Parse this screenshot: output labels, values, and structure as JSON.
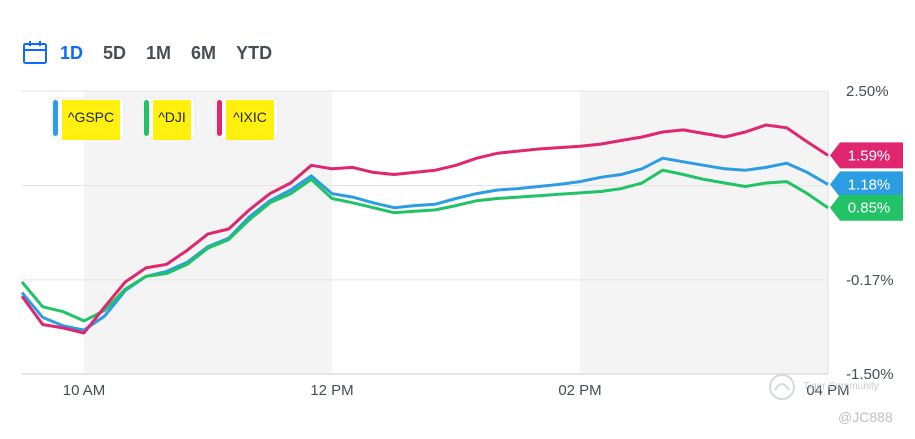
{
  "range_tabs": [
    "1D",
    "5D",
    "1M",
    "6M",
    "YTD"
  ],
  "active_tab": "1D",
  "watermark": {
    "brand": "Tiger Community",
    "handle": "@JC888"
  },
  "colors": {
    "gspc": "#2d9de3",
    "dji": "#21c366",
    "ixic": "#e0266e",
    "highlight": "#ffef00"
  },
  "chart_data": {
    "type": "line",
    "title": "",
    "xlabel": "",
    "ylabel": "",
    "x_ticks": [
      "10 AM",
      "12 PM",
      "02 PM",
      "04 PM"
    ],
    "y_ticks": [
      "2.50%",
      "-0.17%",
      "-1.50%"
    ],
    "ylim": [
      -1.5,
      2.5
    ],
    "xlim": [
      "09:30",
      "16:00"
    ],
    "grid": true,
    "legend_position": "top-left",
    "shaded_periods": [
      [
        "10:00",
        "12:00"
      ],
      [
        "14:00",
        "16:00"
      ]
    ],
    "series": [
      {
        "name": "^GSPC",
        "color": "#2d9de3",
        "end_label": "1.18%",
        "points": [
          [
            "09:30",
            -0.35
          ],
          [
            "09:40",
            -0.7
          ],
          [
            "09:50",
            -0.82
          ],
          [
            "10:00",
            -0.88
          ],
          [
            "10:10",
            -0.68
          ],
          [
            "10:20",
            -0.32
          ],
          [
            "10:30",
            -0.12
          ],
          [
            "10:40",
            -0.05
          ],
          [
            "10:50",
            0.08
          ],
          [
            "11:00",
            0.3
          ],
          [
            "11:10",
            0.42
          ],
          [
            "11:20",
            0.72
          ],
          [
            "11:30",
            0.95
          ],
          [
            "11:40",
            1.1
          ],
          [
            "11:50",
            1.3
          ],
          [
            "12:00",
            1.05
          ],
          [
            "12:10",
            1.0
          ],
          [
            "12:20",
            0.92
          ],
          [
            "12:30",
            0.85
          ],
          [
            "12:40",
            0.88
          ],
          [
            "12:50",
            0.9
          ],
          [
            "13:00",
            0.98
          ],
          [
            "13:10",
            1.05
          ],
          [
            "13:20",
            1.1
          ],
          [
            "13:30",
            1.12
          ],
          [
            "13:40",
            1.15
          ],
          [
            "13:50",
            1.18
          ],
          [
            "14:00",
            1.22
          ],
          [
            "14:10",
            1.28
          ],
          [
            "14:20",
            1.32
          ],
          [
            "14:30",
            1.4
          ],
          [
            "14:40",
            1.55
          ],
          [
            "14:50",
            1.5
          ],
          [
            "15:00",
            1.45
          ],
          [
            "15:10",
            1.4
          ],
          [
            "15:20",
            1.38
          ],
          [
            "15:30",
            1.42
          ],
          [
            "15:40",
            1.48
          ],
          [
            "15:50",
            1.35
          ],
          [
            "16:00",
            1.18
          ]
        ]
      },
      {
        "name": "^DJI",
        "color": "#21c366",
        "end_label": "0.85%",
        "points": [
          [
            "09:30",
            -0.2
          ],
          [
            "09:40",
            -0.55
          ],
          [
            "09:50",
            -0.62
          ],
          [
            "10:00",
            -0.75
          ],
          [
            "10:10",
            -0.6
          ],
          [
            "10:20",
            -0.3
          ],
          [
            "10:30",
            -0.12
          ],
          [
            "10:40",
            -0.08
          ],
          [
            "10:50",
            0.05
          ],
          [
            "11:00",
            0.28
          ],
          [
            "11:10",
            0.4
          ],
          [
            "11:20",
            0.68
          ],
          [
            "11:30",
            0.92
          ],
          [
            "11:40",
            1.05
          ],
          [
            "11:50",
            1.25
          ],
          [
            "12:00",
            0.98
          ],
          [
            "12:10",
            0.92
          ],
          [
            "12:20",
            0.85
          ],
          [
            "12:30",
            0.78
          ],
          [
            "12:40",
            0.8
          ],
          [
            "12:50",
            0.82
          ],
          [
            "13:00",
            0.88
          ],
          [
            "13:10",
            0.95
          ],
          [
            "13:20",
            0.98
          ],
          [
            "13:30",
            1.0
          ],
          [
            "13:40",
            1.02
          ],
          [
            "13:50",
            1.04
          ],
          [
            "14:00",
            1.06
          ],
          [
            "14:10",
            1.08
          ],
          [
            "14:20",
            1.12
          ],
          [
            "14:30",
            1.2
          ],
          [
            "14:40",
            1.38
          ],
          [
            "14:50",
            1.32
          ],
          [
            "15:00",
            1.25
          ],
          [
            "15:10",
            1.2
          ],
          [
            "15:20",
            1.15
          ],
          [
            "15:30",
            1.2
          ],
          [
            "15:40",
            1.22
          ],
          [
            "15:50",
            1.05
          ],
          [
            "16:00",
            0.85
          ]
        ]
      },
      {
        "name": "^IXIC",
        "color": "#e0266e",
        "end_label": "1.59%",
        "points": [
          [
            "09:30",
            -0.4
          ],
          [
            "09:40",
            -0.8
          ],
          [
            "09:50",
            -0.85
          ],
          [
            "10:00",
            -0.92
          ],
          [
            "10:10",
            -0.55
          ],
          [
            "10:20",
            -0.2
          ],
          [
            "10:30",
            0.0
          ],
          [
            "10:40",
            0.05
          ],
          [
            "10:50",
            0.25
          ],
          [
            "11:00",
            0.48
          ],
          [
            "11:10",
            0.55
          ],
          [
            "11:20",
            0.82
          ],
          [
            "11:30",
            1.05
          ],
          [
            "11:40",
            1.2
          ],
          [
            "11:50",
            1.45
          ],
          [
            "12:00",
            1.4
          ],
          [
            "12:10",
            1.42
          ],
          [
            "12:20",
            1.35
          ],
          [
            "12:30",
            1.32
          ],
          [
            "12:40",
            1.35
          ],
          [
            "12:50",
            1.38
          ],
          [
            "13:00",
            1.45
          ],
          [
            "13:10",
            1.55
          ],
          [
            "13:20",
            1.62
          ],
          [
            "13:30",
            1.65
          ],
          [
            "13:40",
            1.68
          ],
          [
            "13:50",
            1.7
          ],
          [
            "14:00",
            1.72
          ],
          [
            "14:10",
            1.75
          ],
          [
            "14:20",
            1.8
          ],
          [
            "14:30",
            1.85
          ],
          [
            "14:40",
            1.92
          ],
          [
            "14:50",
            1.95
          ],
          [
            "15:00",
            1.9
          ],
          [
            "15:10",
            1.85
          ],
          [
            "15:20",
            1.92
          ],
          [
            "15:30",
            2.02
          ],
          [
            "15:40",
            1.98
          ],
          [
            "15:50",
            1.78
          ],
          [
            "16:00",
            1.59
          ]
        ]
      }
    ]
  }
}
